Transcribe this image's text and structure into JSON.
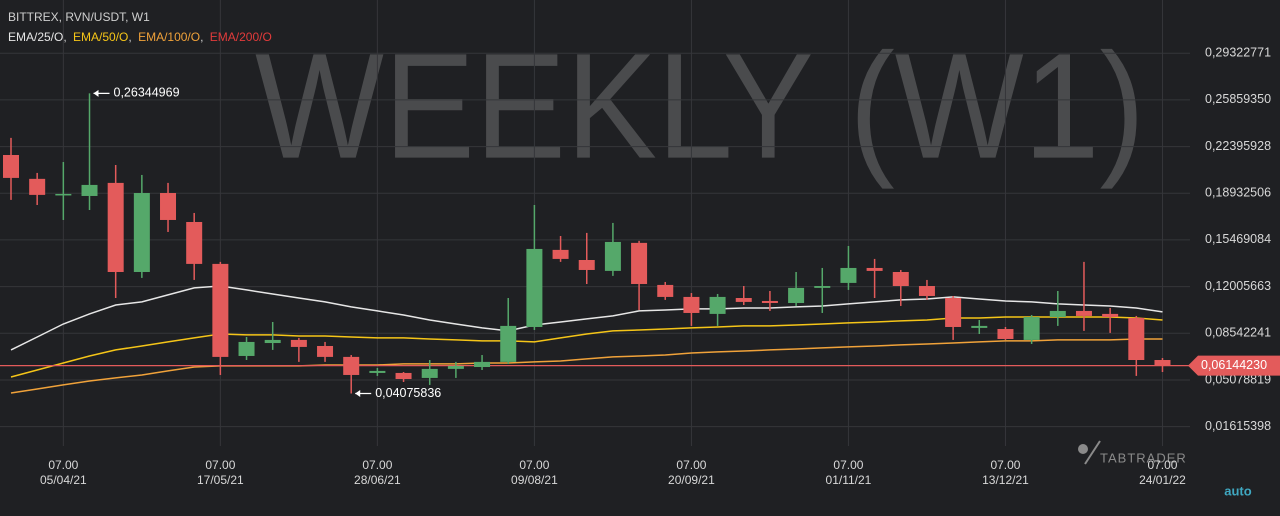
{
  "chart_data": {
    "type": "candlestick",
    "title": "BITTREX, RVN/USDT, W1",
    "watermark": "WEEKLY (W1)",
    "brand": "TABTRADER",
    "scale_mode": "auto",
    "x_tick_time": "07.00",
    "legend_separator": ", ",
    "categories": [
      null,
      null,
      "05/04/21",
      null,
      null,
      null,
      null,
      null,
      "17/05/21",
      null,
      null,
      null,
      null,
      null,
      "28/06/21",
      null,
      null,
      null,
      null,
      null,
      "09/08/21",
      null,
      null,
      null,
      null,
      null,
      "20/09/21",
      null,
      null,
      null,
      null,
      null,
      "01/11/21",
      null,
      null,
      null,
      null,
      null,
      "13/12/21",
      null,
      null,
      null,
      null,
      null,
      "24/01/22"
    ],
    "open": [
      0.2177,
      0.2,
      0.1881,
      0.1873,
      0.197,
      0.1309,
      0.1895,
      0.168,
      0.1369,
      0.0686,
      0.0782,
      0.0805,
      0.076,
      0.0679,
      0.056,
      0.056,
      0.0523,
      0.059,
      0.0604,
      0.0642,
      0.0901,
      0.1473,
      0.1398,
      0.1317,
      0.1525,
      0.1213,
      0.1124,
      0.0998,
      0.1116,
      0.1094,
      0.1079,
      0.1191,
      0.1228,
      0.1339,
      0.1309,
      0.1205,
      0.1116,
      0.0894,
      0.0886,
      0.0805,
      0.0975,
      0.102,
      0.0998,
      0.0968,
      0.0656
    ],
    "high": [
      0.2304,
      0.2044,
      0.2125,
      0.26344969,
      0.2103,
      0.2029,
      0.197,
      0.1747,
      0.1384,
      0.0827,
      0.0938,
      0.082,
      0.079,
      0.0693,
      0.0597,
      0.0567,
      0.0656,
      0.0642,
      0.0693,
      0.1116,
      0.1806,
      0.1576,
      0.1599,
      0.1673,
      0.154,
      0.1235,
      0.1153,
      0.1146,
      0.1205,
      0.1168,
      0.1309,
      0.1339,
      0.1502,
      0.1406,
      0.1324,
      0.125,
      0.1131,
      0.0953,
      0.0901,
      0.099,
      0.1168,
      0.1384,
      0.1042,
      0.0983,
      0.0671
    ],
    "low": [
      0.1844,
      0.1806,
      0.1695,
      0.1769,
      0.1116,
      0.1265,
      0.1606,
      0.125,
      0.0545,
      0.0656,
      0.0731,
      0.0642,
      0.0642,
      0.04075836,
      0.0538,
      0.0493,
      0.0471,
      0.0523,
      0.0582,
      0.0627,
      0.0879,
      0.1384,
      0.122,
      0.128,
      0.1027,
      0.1102,
      0.0909,
      0.0909,
      0.1064,
      0.102,
      0.1057,
      0.1005,
      0.1176,
      0.1116,
      0.1057,
      0.1102,
      0.0805,
      0.0849,
      0.0805,
      0.0775,
      0.0909,
      0.0872,
      0.0857,
      0.0538,
      0.0567
    ],
    "close": [
      0.2007,
      0.1881,
      0.1888,
      0.1955,
      0.1309,
      0.1895,
      0.1695,
      0.1369,
      0.0679,
      0.079,
      0.0805,
      0.0753,
      0.0679,
      0.0545,
      0.0575,
      0.0515,
      0.059,
      0.0612,
      0.0642,
      0.0909,
      0.148,
      0.1406,
      0.1324,
      0.1532,
      0.122,
      0.1124,
      0.1005,
      0.1124,
      0.1087,
      0.1079,
      0.1191,
      0.1205,
      0.1339,
      0.1317,
      0.1205,
      0.1131,
      0.0901,
      0.0909,
      0.0812,
      0.0975,
      0.102,
      0.0983,
      0.0975,
      0.0656,
      0.0614423
    ],
    "up_color": "#55a86a",
    "down_color": "#e35b5b",
    "series": [
      {
        "name": "EMA/25/O",
        "color": "#e6e6e6",
        "values": [
          0.0731,
          0.0827,
          0.0923,
          0.0998,
          0.1064,
          0.1087,
          0.1139,
          0.1191,
          0.1205,
          0.1176,
          0.1146,
          0.1116,
          0.1087,
          0.105,
          0.102,
          0.099,
          0.0953,
          0.0923,
          0.0894,
          0.0872,
          0.0916,
          0.0938,
          0.0961,
          0.0983,
          0.102,
          0.1027,
          0.1035,
          0.1035,
          0.1042,
          0.1042,
          0.105,
          0.1057,
          0.1072,
          0.1087,
          0.1102,
          0.1109,
          0.1124,
          0.1109,
          0.1094,
          0.1087,
          0.1072,
          0.1064,
          0.1057,
          0.1042,
          0.1013
        ]
      },
      {
        "name": "EMA/50/O",
        "color": "#f5c518",
        "values": [
          0.053,
          0.0582,
          0.0634,
          0.0686,
          0.0731,
          0.076,
          0.079,
          0.082,
          0.0849,
          0.0842,
          0.0842,
          0.0834,
          0.0834,
          0.0827,
          0.082,
          0.082,
          0.0812,
          0.0805,
          0.0798,
          0.0798,
          0.079,
          0.082,
          0.0849,
          0.0872,
          0.0879,
          0.0886,
          0.0894,
          0.0901,
          0.0909,
          0.0909,
          0.0916,
          0.0923,
          0.0931,
          0.0938,
          0.0946,
          0.0953,
          0.0968,
          0.0968,
          0.0975,
          0.0975,
          0.0975,
          0.0975,
          0.0975,
          0.0968,
          0.0953
        ]
      },
      {
        "name": "EMA/100/O",
        "color": "#f0a23a",
        "values": [
          0.0411,
          0.0441,
          0.0471,
          0.05,
          0.0523,
          0.0545,
          0.0575,
          0.0604,
          0.0612,
          0.0612,
          0.0612,
          0.0612,
          0.0619,
          0.0619,
          0.0619,
          0.0627,
          0.0627,
          0.0627,
          0.0634,
          0.0634,
          0.0642,
          0.0649,
          0.0664,
          0.0679,
          0.0686,
          0.0693,
          0.0708,
          0.0716,
          0.0723,
          0.0731,
          0.0738,
          0.0746,
          0.0753,
          0.076,
          0.0768,
          0.0775,
          0.0782,
          0.079,
          0.0798,
          0.0798,
          0.0805,
          0.0805,
          0.0805,
          0.0812,
          0.0812
        ]
      },
      {
        "name": "EMA/200/O",
        "color": "#e23b3b"
      }
    ],
    "annotations": [
      {
        "value": 0.26344969,
        "label": "0,26344969"
      },
      {
        "value": 0.04075836,
        "label": "0,04075836"
      }
    ],
    "last_price": {
      "value": 0.0614423,
      "label": "0,06144230",
      "color": "#e35b5b"
    },
    "ylim": [
      0.0018,
      0.3327
    ],
    "yticks": [
      {
        "value": 0.01615398,
        "label": "0,01615398"
      },
      {
        "value": 0.05078819,
        "label": "0,05078819"
      },
      {
        "value": 0.08542241,
        "label": "0,08542241"
      },
      {
        "value": 0.12005663,
        "label": "0,12005663"
      },
      {
        "value": 0.15469084,
        "label": "0,15469084"
      },
      {
        "value": 0.18932506,
        "label": "0,18932506"
      },
      {
        "value": 0.22395928,
        "label": "0,22395928"
      },
      {
        "value": 0.2585935,
        "label": "0,25859350"
      },
      {
        "value": 0.29322771,
        "label": "0,29322771"
      }
    ],
    "grid": true
  }
}
